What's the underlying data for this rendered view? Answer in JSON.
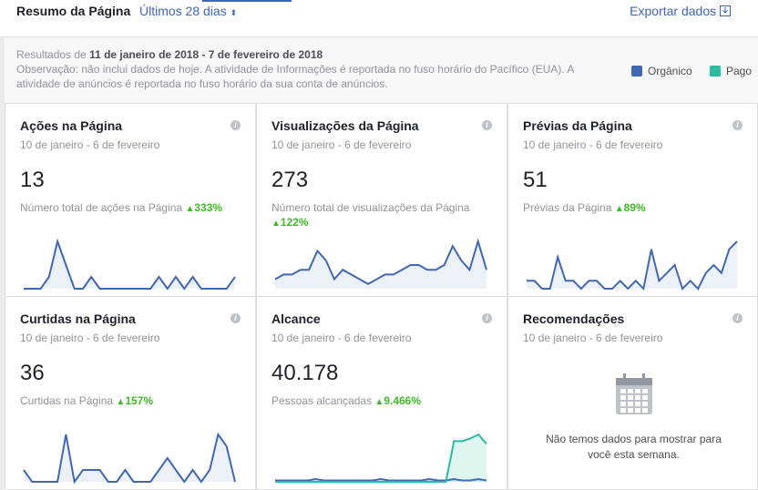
{
  "header": {
    "title": "Resumo da Página",
    "period": "Últimos 28 dias",
    "export": "Exportar dados"
  },
  "info": {
    "results_prefix": "Resultados de",
    "range": "11 de janeiro de 2018 - 7 de fevereiro de 2018",
    "note": "Observação: não inclui dados de hoje. A atividade de Informações é reportada no fuso horário do Pacífico (EUA). A atividade de anúncios é reportada no fuso horário da sua conta de anúncios."
  },
  "legend": [
    {
      "name": "Orgânico",
      "color": "#4267b2"
    },
    {
      "name": "Pago",
      "color": "#2abba0"
    }
  ],
  "cards": [
    {
      "title": "Ações na Página",
      "date_range": "10 de janeiro - 6 de fevereiro",
      "value": "13",
      "description": "Número total de ações na Página",
      "change": "333%",
      "organic": [
        0,
        0,
        0,
        1,
        4,
        2,
        0,
        0,
        1,
        0,
        0,
        0,
        0,
        0,
        0,
        0,
        1,
        0,
        1,
        0,
        1,
        0,
        0,
        0,
        0,
        1
      ]
    },
    {
      "title": "Visualizações da Página",
      "date_range": "10 de janeiro - 6 de fevereiro",
      "value": "273",
      "description": "Número total de visualizações da Página",
      "change": "122%",
      "organic": [
        2,
        3,
        3,
        4,
        4,
        8,
        6,
        2,
        4,
        3,
        2,
        1,
        2,
        3,
        3,
        4,
        5,
        5,
        4,
        4,
        5,
        9,
        6,
        4,
        10,
        4
      ]
    },
    {
      "title": "Prévias da Página",
      "date_range": "10 de janeiro - 6 de fevereiro",
      "value": "51",
      "description": "Prévias da Página",
      "change": "89%",
      "organic": [
        1,
        1,
        0,
        0,
        4,
        1,
        1,
        0,
        1,
        1,
        0,
        0,
        1,
        0,
        1,
        0,
        5,
        1,
        2,
        3,
        0,
        1,
        0,
        2,
        3,
        2,
        5,
        6
      ]
    },
    {
      "title": "Curtidas na Página",
      "date_range": "10 de janeiro - 6 de fevereiro",
      "value": "36",
      "description": "Curtidas na Página",
      "change": "157%",
      "organic": [
        1,
        0,
        0,
        0,
        0,
        4,
        0,
        1,
        1,
        1,
        0,
        0,
        1,
        0,
        0,
        0,
        1,
        2,
        1,
        0,
        1,
        0,
        1,
        4,
        3,
        0
      ]
    },
    {
      "title": "Alcance",
      "date_range": "10 de janeiro - 6 de fevereiro",
      "value": "40.178",
      "description": "Pessoas alcançadas",
      "change": "9.466%",
      "organic": [
        1,
        1,
        1,
        1,
        1,
        2,
        1,
        1,
        1,
        1,
        1,
        1,
        1,
        2,
        1,
        1,
        1,
        1,
        1,
        2,
        1,
        1,
        2,
        1,
        1,
        2,
        1
      ],
      "paid": [
        0,
        0,
        0,
        0,
        0,
        0,
        0,
        0,
        0,
        0,
        0,
        0,
        0,
        0,
        0,
        0,
        0,
        0,
        0,
        0,
        0,
        0,
        30,
        30,
        32,
        35,
        28
      ]
    }
  ],
  "empty_card": {
    "title": "Recomendações",
    "date_range": "10 de janeiro - 6 de fevereiro",
    "message": "Não temos dados para mostrar para você esta semana."
  }
}
